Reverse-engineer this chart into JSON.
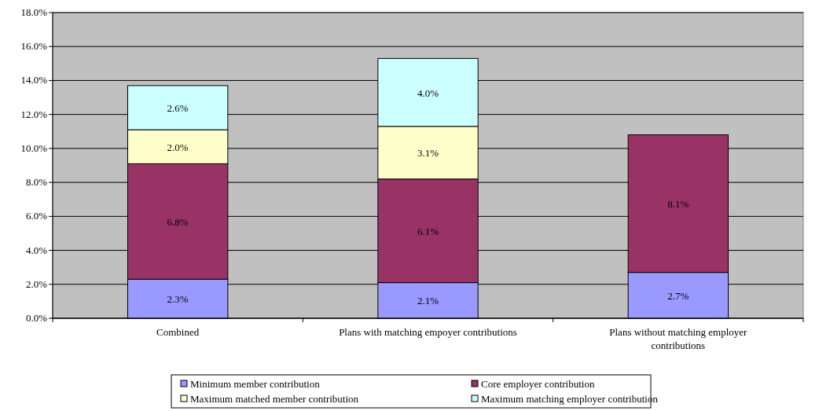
{
  "chart_data": {
    "type": "bar",
    "stacked": true,
    "categories": [
      "Combined",
      "Plans with matching empoyer contributions",
      "Plans without matching employer contributions"
    ],
    "series": [
      {
        "name": "Minimum member contribution",
        "color": "#9999ff",
        "values": [
          2.3,
          2.1,
          2.7
        ],
        "value_labels": [
          "2.3%",
          "2.1%",
          "2.7%"
        ]
      },
      {
        "name": "Core employer contribution",
        "color": "#993366",
        "values": [
          6.8,
          6.1,
          8.1
        ],
        "value_labels": [
          "6.8%",
          "6.1%",
          "8.1%"
        ]
      },
      {
        "name": "Maximum matched member contribution",
        "color": "#ffffcc",
        "values": [
          2.0,
          3.1,
          null
        ],
        "value_labels": [
          "2.0%",
          "3.1%",
          null
        ]
      },
      {
        "name": "Maximum matching employer contribution",
        "color": "#ccffff",
        "values": [
          2.6,
          4.0,
          null
        ],
        "value_labels": [
          "2.6%",
          "4.0%",
          null
        ]
      }
    ],
    "ylim": [
      0,
      18
    ],
    "yticks": [
      {
        "value": 0,
        "label": "0.0%"
      },
      {
        "value": 2,
        "label": "2.0%"
      },
      {
        "value": 4,
        "label": "4.0%"
      },
      {
        "value": 6,
        "label": "6.0%"
      },
      {
        "value": 8,
        "label": "8.0%"
      },
      {
        "value": 10,
        "label": "10.0%"
      },
      {
        "value": 12,
        "label": "12.0%"
      },
      {
        "value": 14,
        "label": "14.0%"
      },
      {
        "value": 16,
        "label": "16.0%"
      },
      {
        "value": 18,
        "label": "18.0%"
      }
    ],
    "grid": "y",
    "legend": "bottom"
  }
}
